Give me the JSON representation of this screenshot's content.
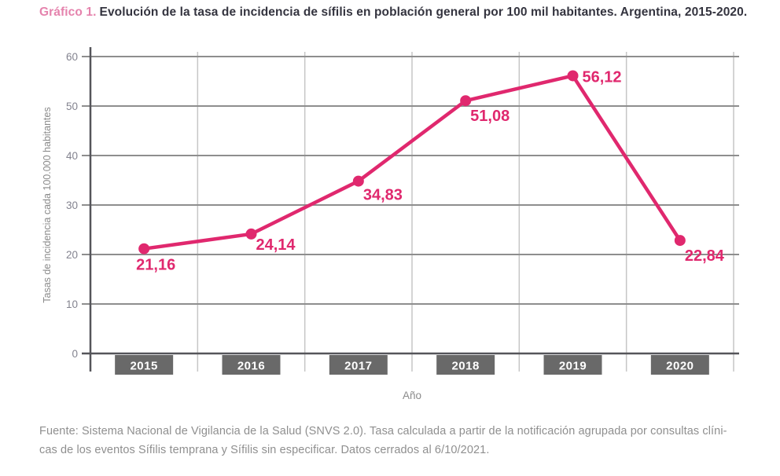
{
  "title": {
    "prefix": "Gráfico 1.",
    "main": "Evolución de la tasa de incidencia de sífilis en población general por 100 mil habitantes. Argentina, 2015-2020."
  },
  "chart_data": {
    "type": "line",
    "categories": [
      "2015",
      "2016",
      "2017",
      "2018",
      "2019",
      "2020"
    ],
    "values": [
      21.16,
      24.14,
      34.83,
      51.08,
      56.12,
      22.84
    ],
    "point_labels": [
      "21,16",
      "24,14",
      "34,83",
      "51,08",
      "56,12",
      "22,84"
    ],
    "title": "Evolución de la tasa de incidencia de sífilis en población general por 100 mil habitantes. Argentina, 2015-2020",
    "xlabel": "Año",
    "ylabel": "Tasas de incidencia cada 100.000 habitantes",
    "ylim": [
      0,
      60
    ],
    "yticks": [
      "0",
      "10",
      "20",
      "30",
      "40",
      "50",
      "60"
    ],
    "grid": true,
    "legend": false
  },
  "colors": {
    "accent": "#e0286e",
    "title_prefix": "#e583ad",
    "title_text": "#34343f",
    "axis": "#55555a",
    "grid_h": "#8e8e8e",
    "grid_v": "#c6c6c6",
    "tick_text": "#83838f",
    "axis_label_text": "#8a8a8a",
    "year_box_bg": "#696969",
    "year_box_text": "#ffffff",
    "footer_text": "#8f8f8f"
  },
  "footer": {
    "lines": [
      "Fuente: Sistema Nacional de Vigilancia de la Salud (SNVS 2.0). Tasa calculada a partir de la notificación agrupada por consultas clíni-",
      "cas de los eventos Sífilis temprana y Sífilis sin especificar. Datos cerrados al 6/10/2021."
    ]
  }
}
